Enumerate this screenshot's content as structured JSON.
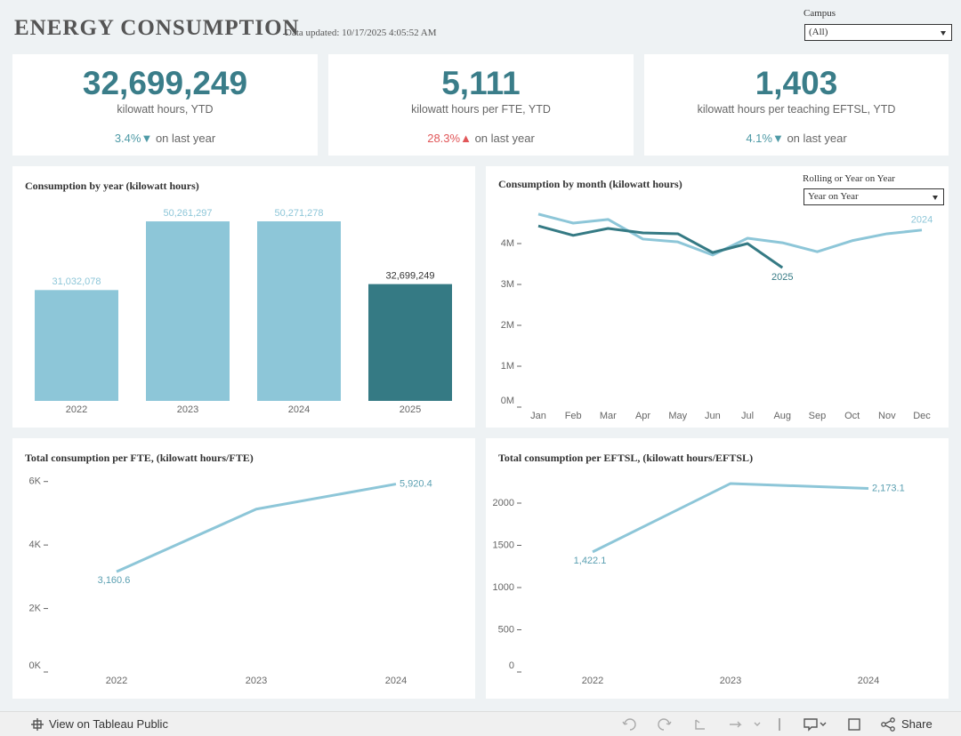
{
  "header": {
    "title": "ENERGY CONSUMPTION",
    "updated": "Data updated: 10/17/2025 4:05:52 AM"
  },
  "filters": [
    {
      "label": "Campus",
      "value": "(All)"
    },
    {
      "label": "Rolling or Year on Year",
      "value": "Year on Year"
    }
  ],
  "kpis": [
    {
      "value": "32,699,249",
      "label": "kilowatt hours, YTD",
      "change": "3.4%▼",
      "change_color": "#4e9aa6",
      "suffix": "on last year"
    },
    {
      "value": "5,111",
      "label": "kilowatt hours per FTE, YTD",
      "change": "28.3%▲",
      "change_color": "#e15759",
      "suffix": "on last year"
    },
    {
      "value": "1,403",
      "label": "kilowatt hours per teaching EFTSL, YTD",
      "change": "4.1%▼",
      "change_color": "#4e9aa6",
      "suffix": "on last year"
    }
  ],
  "chart_data": [
    {
      "type": "bar",
      "title": "Consumption by year (kilowatt hours)",
      "categories": [
        "2022",
        "2023",
        "2024",
        "2025"
      ],
      "values": [
        31032078,
        50261297,
        50271278,
        32699249
      ],
      "value_labels": [
        "31,032,078",
        "50,261,297",
        "50,271,278",
        "32,699,249"
      ],
      "colors": [
        "#8dc6d8",
        "#8dc6d8",
        "#8dc6d8",
        "#357a84"
      ]
    },
    {
      "type": "line",
      "title": "Consumption by month (kilowatt hours)",
      "categories": [
        "Jan",
        "Feb",
        "Mar",
        "Apr",
        "May",
        "Jun",
        "Jul",
        "Aug",
        "Sep",
        "Oct",
        "Nov",
        "Dec"
      ],
      "series": [
        {
          "name": "2024",
          "color": "#8dc6d8",
          "values": [
            4720000,
            4500000,
            4590000,
            4110000,
            4040000,
            3720000,
            4130000,
            4020000,
            3800000,
            4070000,
            4240000,
            4330000
          ]
        },
        {
          "name": "2025",
          "color": "#357a84",
          "values": [
            4430000,
            4200000,
            4370000,
            4260000,
            4240000,
            3780000,
            4000000,
            3410000,
            null,
            null,
            null,
            null
          ]
        }
      ],
      "ylim": [
        0,
        5000000
      ],
      "yticks": [
        {
          "value": 0,
          "label": "0M"
        },
        {
          "value": 1000000,
          "label": "1M"
        },
        {
          "value": 2000000,
          "label": "2M"
        },
        {
          "value": 3000000,
          "label": "3M"
        },
        {
          "value": 4000000,
          "label": "4M"
        }
      ]
    },
    {
      "type": "line",
      "title": "Total consumption per FTE, (kilowatt hours/FTE)",
      "categories": [
        "2022",
        "2023",
        "2024"
      ],
      "series": [
        {
          "color": "#8dc6d8",
          "values": [
            3160.6,
            5130,
            5920.4
          ],
          "value_labels": [
            "3,160.6",
            null,
            "5,920.4"
          ]
        }
      ],
      "ylim": [
        0,
        6300
      ],
      "yticks": [
        {
          "value": 0,
          "label": "0K"
        },
        {
          "value": 2000,
          "label": "2K"
        },
        {
          "value": 4000,
          "label": "4K"
        },
        {
          "value": 6000,
          "label": "6K"
        }
      ]
    },
    {
      "type": "line",
      "title": "Total consumption per EFTSL, (kilowatt hours/EFTSL)",
      "categories": [
        "2022",
        "2023",
        "2024"
      ],
      "series": [
        {
          "color": "#8dc6d8",
          "values": [
            1422.1,
            2232,
            2173.1
          ],
          "value_labels": [
            "1,422.1",
            null,
            "2,173.1"
          ]
        }
      ],
      "ylim": [
        0,
        2400
      ],
      "yticks": [
        0,
        500,
        1000,
        1500,
        2000
      ]
    }
  ],
  "footer": {
    "link": "View on Tableau Public",
    "share": "Share"
  }
}
